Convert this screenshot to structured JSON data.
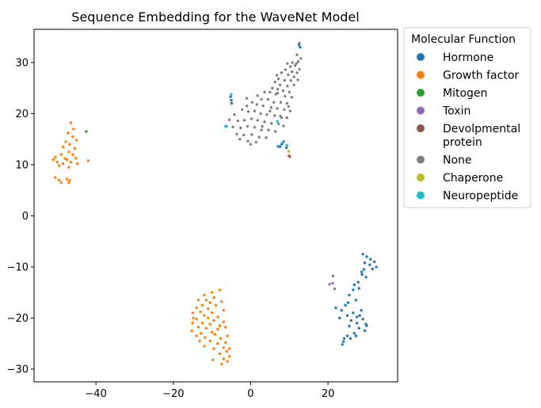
{
  "chart_data": {
    "type": "scatter",
    "title": "Sequence Embedding for the WaveNet Model",
    "xlabel": "",
    "ylabel": "",
    "xlim": [
      -56,
      38
    ],
    "ylim": [
      -32.5,
      36.5
    ],
    "xticks": [
      -40,
      -20,
      0,
      20
    ],
    "xtick_labels": [
      "−40",
      "−20",
      "0",
      "20"
    ],
    "yticks": [
      -30,
      -20,
      -10,
      0,
      10,
      20,
      30
    ],
    "ytick_labels": [
      "−30",
      "−20",
      "−10",
      "0",
      "10",
      "20",
      "30"
    ],
    "grid": false,
    "legend": {
      "title": "Molecular Function",
      "placement": "outside-right",
      "entries": [
        {
          "label": "Hormone",
          "lines": [
            "Hormone"
          ],
          "color": "#1f77b4"
        },
        {
          "label": "Growth factor",
          "lines": [
            "Growth factor"
          ],
          "color": "#ff7f0e"
        },
        {
          "label": "Mitogen",
          "lines": [
            "Mitogen"
          ],
          "color": "#2ca02c"
        },
        {
          "label": "Toxin",
          "lines": [
            "Toxin"
          ],
          "color": "#9467bd"
        },
        {
          "label": "Devolpmental protein",
          "lines": [
            "Devolpmental",
            "protein"
          ],
          "color": "#8c564b"
        },
        {
          "label": "None",
          "lines": [
            "None"
          ],
          "color": "#7f7f7f"
        },
        {
          "label": "Chaperone",
          "lines": [
            "Chaperone"
          ],
          "color": "#bcbd22"
        },
        {
          "label": "Neuropeptide",
          "lines": [
            "Neuropeptide"
          ],
          "color": "#17becf"
        }
      ]
    },
    "series": [
      {
        "name": "Hormone",
        "color": "#1f77b4",
        "points": [
          [
            -5.2,
            23.3
          ],
          [
            -5.0,
            22.6
          ],
          [
            -4.9,
            22.0
          ],
          [
            -6.3,
            17.5
          ],
          [
            8.0,
            14.0
          ],
          [
            8.5,
            14.5
          ],
          [
            7.1,
            13.6
          ],
          [
            9.2,
            13.3
          ],
          [
            7.6,
            13.5
          ],
          [
            12.5,
            33.5
          ],
          [
            12.8,
            33.0
          ],
          [
            29.0,
            -7.5
          ],
          [
            30.0,
            -8.0
          ],
          [
            31.0,
            -8.5
          ],
          [
            32.0,
            -9.0
          ],
          [
            29.5,
            -9.2
          ],
          [
            30.8,
            -9.6
          ],
          [
            32.5,
            -10.0
          ],
          [
            31.5,
            -10.4
          ],
          [
            29.3,
            -10.5
          ],
          [
            28.7,
            -11.0
          ],
          [
            28.8,
            -11.5
          ],
          [
            29.8,
            -12.0
          ],
          [
            27.8,
            -13.0
          ],
          [
            26.8,
            -13.5
          ],
          [
            28.0,
            -14.2
          ],
          [
            26.5,
            -14.5
          ],
          [
            25.5,
            -15.5
          ],
          [
            27.2,
            -16.5
          ],
          [
            25.2,
            -17.0
          ],
          [
            24.5,
            -17.5
          ],
          [
            23.5,
            -18.5
          ],
          [
            22.0,
            -18.0
          ],
          [
            28.6,
            -18.5
          ],
          [
            26.5,
            -19.0
          ],
          [
            25.0,
            -19.5
          ],
          [
            27.5,
            -19.8
          ],
          [
            23.0,
            -20.0
          ],
          [
            29.0,
            -20.2
          ],
          [
            26.0,
            -20.5
          ],
          [
            27.5,
            -21.0
          ],
          [
            29.8,
            -21.2
          ],
          [
            25.5,
            -21.6
          ],
          [
            28.0,
            -22.0
          ],
          [
            29.5,
            -22.5
          ],
          [
            26.8,
            -23.0
          ],
          [
            25.0,
            -23.5
          ],
          [
            24.2,
            -24.0
          ],
          [
            27.2,
            -23.5
          ],
          [
            25.8,
            -24.0
          ],
          [
            24.0,
            -24.6
          ],
          [
            23.7,
            -25.2
          ],
          [
            30.0,
            -21.5
          ],
          [
            28.2,
            -19.5
          ]
        ]
      },
      {
        "name": "Growth factor",
        "color": "#ff7f0e",
        "points": [
          [
            -46.5,
            18.2
          ],
          [
            -45.8,
            17.0
          ],
          [
            -47.2,
            16.2
          ],
          [
            -46.0,
            15.5
          ],
          [
            -45.0,
            14.8
          ],
          [
            -47.8,
            14.5
          ],
          [
            -46.8,
            14.0
          ],
          [
            -48.5,
            13.5
          ],
          [
            -45.5,
            13.2
          ],
          [
            -47.0,
            12.5
          ],
          [
            -49.0,
            12.0
          ],
          [
            -46.0,
            12.0
          ],
          [
            -50.5,
            11.5
          ],
          [
            -48.0,
            11.2
          ],
          [
            -51.0,
            11.0
          ],
          [
            -47.5,
            11.0
          ],
          [
            -45.2,
            11.3
          ],
          [
            -50.0,
            10.5
          ],
          [
            -48.5,
            10.2
          ],
          [
            -46.5,
            10.5
          ],
          [
            -44.8,
            10.2
          ],
          [
            -49.5,
            9.8
          ],
          [
            -47.0,
            9.5
          ],
          [
            -42.0,
            10.8
          ],
          [
            -50.5,
            7.5
          ],
          [
            -49.5,
            7.0
          ],
          [
            -47.5,
            7.2
          ],
          [
            -47.0,
            6.5
          ],
          [
            -49.0,
            6.5
          ],
          [
            -46.8,
            7.0
          ],
          [
            9.8,
            11.8
          ],
          [
            -8.0,
            -14.5
          ],
          [
            -10.0,
            -15.0
          ],
          [
            -12.0,
            -15.5
          ],
          [
            -9.5,
            -16.0
          ],
          [
            -11.5,
            -16.5
          ],
          [
            -13.5,
            -16.5
          ],
          [
            -7.5,
            -16.8
          ],
          [
            -10.5,
            -17.0
          ],
          [
            -12.5,
            -17.5
          ],
          [
            -9.0,
            -17.5
          ],
          [
            -14.0,
            -18.0
          ],
          [
            -11.0,
            -18.2
          ],
          [
            -7.0,
            -18.5
          ],
          [
            -13.0,
            -18.8
          ],
          [
            -10.0,
            -19.0
          ],
          [
            -15.0,
            -19.0
          ],
          [
            -12.0,
            -19.5
          ],
          [
            -8.5,
            -19.8
          ],
          [
            -11.0,
            -20.0
          ],
          [
            -14.0,
            -20.2
          ],
          [
            -9.5,
            -20.5
          ],
          [
            -7.0,
            -20.8
          ],
          [
            -12.5,
            -21.0
          ],
          [
            -10.5,
            -21.2
          ],
          [
            -15.0,
            -21.0
          ],
          [
            -13.5,
            -21.8
          ],
          [
            -6.5,
            -21.8
          ],
          [
            -11.5,
            -22.0
          ],
          [
            -8.5,
            -22.2
          ],
          [
            -15.2,
            -22.5
          ],
          [
            -10.0,
            -22.8
          ],
          [
            -12.8,
            -23.0
          ],
          [
            -9.2,
            -23.2
          ],
          [
            -14.0,
            -23.5
          ],
          [
            -6.0,
            -23.5
          ],
          [
            -11.8,
            -23.8
          ],
          [
            -7.8,
            -24.0
          ],
          [
            -13.2,
            -24.5
          ],
          [
            -6.5,
            -24.8
          ],
          [
            -10.5,
            -24.5
          ],
          [
            -8.5,
            -25.0
          ],
          [
            -12.0,
            -25.5
          ],
          [
            -7.0,
            -25.8
          ],
          [
            -5.5,
            -26.0
          ],
          [
            -9.5,
            -26.0
          ],
          [
            -6.2,
            -26.5
          ],
          [
            -8.0,
            -27.0
          ],
          [
            -5.5,
            -27.5
          ],
          [
            -7.0,
            -28.0
          ],
          [
            -9.8,
            -28.2
          ],
          [
            -6.0,
            -28.5
          ],
          [
            -7.5,
            -29.0
          ],
          [
            -14.8,
            -20.0
          ],
          [
            -8.0,
            -21.5
          ]
        ]
      },
      {
        "name": "Mitogen",
        "color": "#2ca02c",
        "points": [
          [
            -42.5,
            16.5
          ]
        ]
      },
      {
        "name": "Toxin",
        "color": "#9467bd",
        "points": [
          [
            21.3,
            -11.8
          ],
          [
            20.4,
            -13.4
          ],
          [
            21.2,
            -13.2
          ],
          [
            21.7,
            -14.3
          ]
        ]
      },
      {
        "name": "Devolpmental protein",
        "color": "#8c564b",
        "points": [
          [
            10.1,
            11.6
          ]
        ]
      },
      {
        "name": "None",
        "color": "#7f7f7f",
        "points": [
          [
            12.6,
            33.8
          ],
          [
            12.0,
            31.5
          ],
          [
            13.0,
            30.8
          ],
          [
            12.3,
            30.2
          ],
          [
            10.8,
            30.0
          ],
          [
            9.5,
            29.8
          ],
          [
            10.3,
            29.2
          ],
          [
            11.5,
            29.4
          ],
          [
            12.6,
            28.7
          ],
          [
            9.0,
            28.6
          ],
          [
            10.7,
            28.2
          ],
          [
            12.0,
            28.0
          ],
          [
            8.0,
            28.0
          ],
          [
            9.7,
            27.6
          ],
          [
            11.2,
            27.2
          ],
          [
            12.2,
            26.6
          ],
          [
            7.2,
            26.8
          ],
          [
            8.8,
            26.5
          ],
          [
            10.4,
            26.5
          ],
          [
            6.3,
            26.2
          ],
          [
            7.6,
            25.6
          ],
          [
            9.5,
            25.4
          ],
          [
            11.2,
            25.6
          ],
          [
            5.6,
            25.0
          ],
          [
            7.0,
            24.8
          ],
          [
            8.4,
            24.5
          ],
          [
            10.0,
            24.2
          ],
          [
            3.6,
            24.2
          ],
          [
            5.0,
            24.2
          ],
          [
            6.5,
            23.8
          ],
          [
            8.9,
            23.4
          ],
          [
            10.6,
            23.2
          ],
          [
            1.8,
            23.5
          ],
          [
            2.8,
            22.8
          ],
          [
            4.5,
            22.8
          ],
          [
            6.0,
            22.2
          ],
          [
            7.8,
            22.2
          ],
          [
            9.4,
            22.0
          ],
          [
            -1.0,
            23.0
          ],
          [
            0.4,
            22.2
          ],
          [
            1.6,
            21.8
          ],
          [
            3.2,
            21.5
          ],
          [
            5.3,
            21.2
          ],
          [
            6.9,
            21.0
          ],
          [
            8.7,
            20.8
          ],
          [
            10.2,
            20.5
          ],
          [
            -4.2,
            19.8
          ],
          [
            -2.2,
            20.8
          ],
          [
            -0.6,
            20.4
          ],
          [
            1.0,
            20.5
          ],
          [
            2.6,
            20.0
          ],
          [
            4.2,
            19.8
          ],
          [
            6.2,
            19.6
          ],
          [
            7.7,
            19.5
          ],
          [
            9.4,
            19.2
          ],
          [
            -5.5,
            18.8
          ],
          [
            -3.3,
            18.6
          ],
          [
            -1.6,
            18.7
          ],
          [
            0.2,
            19.0
          ],
          [
            1.8,
            18.7
          ],
          [
            3.6,
            18.4
          ],
          [
            5.4,
            18.1
          ],
          [
            7.2,
            18.0
          ],
          [
            8.5,
            17.6
          ],
          [
            -4.6,
            17.4
          ],
          [
            -2.6,
            17.2
          ],
          [
            -0.8,
            17.5
          ],
          [
            1.0,
            17.3
          ],
          [
            2.8,
            16.8
          ],
          [
            4.6,
            16.8
          ],
          [
            6.4,
            16.5
          ],
          [
            -3.6,
            16.0
          ],
          [
            -1.8,
            15.8
          ],
          [
            0.3,
            15.9
          ],
          [
            2.2,
            15.4
          ],
          [
            4.0,
            15.3
          ],
          [
            -2.8,
            15.0
          ],
          [
            -0.7,
            14.6
          ],
          [
            1.4,
            14.4
          ],
          [
            0.0,
            14.0
          ],
          [
            7.0,
            24.0
          ],
          [
            8.0,
            19.2
          ],
          [
            3.0,
            17.5
          ],
          [
            -1.0,
            21.5
          ],
          [
            5.0,
            20.5
          ],
          [
            9.8,
            21.4
          ],
          [
            11.8,
            29.8
          ],
          [
            6.8,
            27.5
          ]
        ]
      },
      {
        "name": "Chaperone",
        "color": "#bcbd22",
        "points": [
          [
            9.8,
            12.6
          ]
        ]
      },
      {
        "name": "Neuropeptide",
        "color": "#17becf",
        "points": [
          [
            -5.0,
            23.8
          ],
          [
            8.3,
            14.3
          ],
          [
            9.4,
            13.8
          ],
          [
            6.9,
            18.5
          ],
          [
            -6.5,
            17.5
          ]
        ]
      }
    ]
  }
}
